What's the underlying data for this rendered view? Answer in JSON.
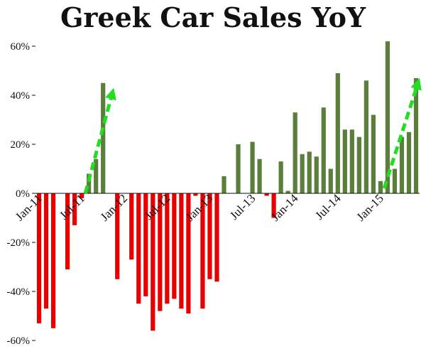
{
  "chart_data": {
    "type": "bar",
    "title": "Greek Car Sales YoY",
    "xlabel": "",
    "ylabel": "",
    "ylim": [
      -60,
      60
    ],
    "yticks": [
      60,
      40,
      20,
      0,
      -20,
      -40,
      -60
    ],
    "ytick_labels": [
      "60%",
      "40%",
      "20%",
      "0%",
      "-20%",
      "-40%",
      "-60%"
    ],
    "x_tick_labels": [
      {
        "label": "Jan-11",
        "index": 0
      },
      {
        "label": "Jul-11",
        "index": 6
      },
      {
        "label": "Jan-12",
        "index": 12
      },
      {
        "label": "Jul-12",
        "index": 18
      },
      {
        "label": "Jan-13",
        "index": 24
      },
      {
        "label": "Jul-13",
        "index": 30
      },
      {
        "label": "Jan-14",
        "index": 36
      },
      {
        "label": "Jul-14",
        "index": 42
      },
      {
        "label": "Jan-15",
        "index": 48
      }
    ],
    "positive_color": "#5a7f3a",
    "negative_color": "#e60000",
    "arrow_color": "#22dd22",
    "grid": false,
    "values": [
      -53,
      -47,
      -55,
      0,
      -31,
      -13,
      -2,
      8,
      14,
      45,
      0,
      -35,
      0,
      -27,
      -45,
      -42,
      -56,
      -48,
      -45,
      -43,
      -47,
      -49,
      -1,
      -47,
      -35,
      -36,
      7,
      0,
      20,
      0,
      21,
      14,
      -1,
      -10,
      13,
      1,
      33,
      16,
      17,
      15,
      35,
      10,
      49,
      26,
      26,
      23,
      46,
      32,
      5,
      62,
      10,
      23,
      25,
      47
    ],
    "arrows": [
      {
        "from": {
          "index": 6.5,
          "value": 0
        },
        "to": {
          "index": 10.5,
          "value": 43
        }
      },
      {
        "from": {
          "index": 48.5,
          "value": 2
        },
        "to": {
          "index": 53.5,
          "value": 47
        }
      }
    ]
  }
}
